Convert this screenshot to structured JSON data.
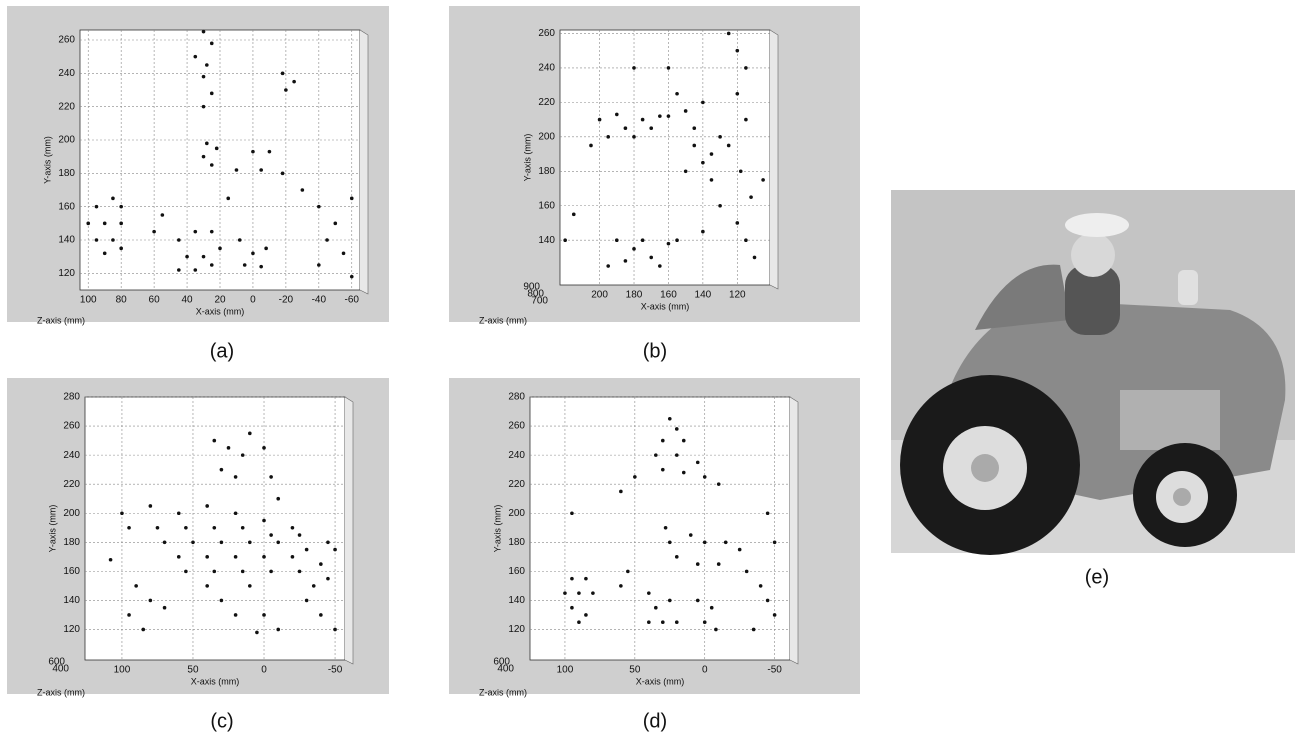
{
  "chart_data": [
    {
      "type": "scatter",
      "caption": "(a)",
      "x_label": "X-axis (mm)",
      "y_label": "Y-axis (mm)",
      "z_label": "Z-axis (mm)",
      "xlim": [
        105,
        -65
      ],
      "ylim": [
        110,
        266
      ],
      "xticks": [
        100,
        80,
        60,
        40,
        20,
        0,
        -20,
        -40,
        -60
      ],
      "yticks": [
        120,
        140,
        160,
        180,
        200,
        220,
        240,
        260
      ],
      "zticks": [],
      "grid": true,
      "color": "#111111",
      "x": [
        95,
        85,
        80,
        100,
        90,
        80,
        95,
        85,
        80,
        90,
        45,
        35,
        25,
        40,
        30,
        20,
        45,
        35,
        25,
        30,
        25,
        35,
        28,
        30,
        25,
        30,
        28,
        22,
        30,
        25,
        8,
        0,
        -8,
        5,
        -5,
        0,
        -10,
        10,
        -5,
        -18,
        -18,
        -25,
        -20,
        -40,
        -50,
        -60,
        -45,
        -55,
        -40,
        -60,
        55,
        60,
        15,
        -30
      ],
      "y": [
        160,
        165,
        160,
        150,
        150,
        150,
        140,
        140,
        135,
        132,
        140,
        145,
        145,
        130,
        130,
        135,
        122,
        122,
        125,
        265,
        258,
        250,
        245,
        238,
        228,
        220,
        198,
        195,
        190,
        185,
        140,
        132,
        135,
        125,
        124,
        193,
        193,
        182,
        182,
        180,
        240,
        235,
        230,
        160,
        150,
        165,
        140,
        132,
        125,
        118,
        155,
        145,
        165,
        170
      ]
    },
    {
      "type": "scatter",
      "caption": "(b)",
      "x_label": "X-axis (mm)",
      "y_label": "Y-axis (mm)",
      "z_label": "Z-axis (mm)",
      "xlim": [
        223,
        101
      ],
      "ylim": [
        114,
        262
      ],
      "xticks": [
        200,
        180,
        160,
        140,
        120
      ],
      "yticks": [
        140,
        160,
        180,
        200,
        220,
        240,
        260
      ],
      "zticks": [
        900,
        800,
        700
      ],
      "grid": true,
      "color": "#111111",
      "x": [
        205,
        195,
        185,
        175,
        165,
        200,
        190,
        180,
        170,
        160,
        190,
        180,
        170,
        160,
        195,
        185,
        175,
        165,
        155,
        155,
        150,
        145,
        140,
        145,
        135,
        150,
        140,
        130,
        135,
        125,
        120,
        115,
        120,
        115,
        125,
        118,
        112,
        120,
        115,
        110,
        105,
        215,
        220,
        180,
        160,
        130,
        140
      ],
      "y": [
        195,
        200,
        205,
        210,
        212,
        210,
        213,
        200,
        205,
        212,
        140,
        135,
        130,
        138,
        125,
        128,
        140,
        125,
        140,
        225,
        215,
        205,
        220,
        195,
        190,
        180,
        185,
        200,
        175,
        260,
        250,
        240,
        225,
        210,
        195,
        180,
        165,
        150,
        140,
        130,
        175,
        155,
        140,
        240,
        240,
        160,
        145
      ]
    },
    {
      "type": "scatter",
      "caption": "(c)",
      "x_label": "X-axis (mm)",
      "y_label": "Y-axis (mm)",
      "z_label": "Z-axis (mm)",
      "xlim": [
        126,
        -57
      ],
      "ylim": [
        99,
        280
      ],
      "xticks": [
        100,
        50,
        0,
        -50
      ],
      "yticks": [
        120,
        140,
        160,
        180,
        200,
        220,
        240,
        260,
        280
      ],
      "zticks": [
        600,
        400
      ],
      "grid": true,
      "color": "#111111",
      "x": [
        100,
        80,
        60,
        40,
        20,
        0,
        -20,
        95,
        75,
        55,
        35,
        15,
        -5,
        -25,
        -45,
        70,
        50,
        30,
        10,
        -10,
        -30,
        -50,
        60,
        40,
        20,
        0,
        -20,
        -40,
        55,
        35,
        15,
        -5,
        -25,
        -45,
        90,
        80,
        95,
        85,
        70,
        40,
        30,
        20,
        10,
        0,
        -10,
        5,
        -30,
        -40,
        -50,
        -35,
        35,
        25,
        15,
        30,
        20,
        10,
        0,
        -5,
        -10,
        108
      ],
      "y": [
        200,
        205,
        200,
        205,
        200,
        195,
        190,
        190,
        190,
        190,
        190,
        190,
        185,
        185,
        180,
        180,
        180,
        180,
        180,
        180,
        175,
        175,
        170,
        170,
        170,
        170,
        170,
        165,
        160,
        160,
        160,
        160,
        160,
        155,
        150,
        140,
        130,
        120,
        135,
        150,
        140,
        130,
        150,
        130,
        120,
        118,
        140,
        130,
        120,
        150,
        250,
        245,
        240,
        230,
        225,
        255,
        245,
        225,
        210,
        168
      ]
    },
    {
      "type": "scatter",
      "caption": "(d)",
      "x_label": "X-axis (mm)",
      "y_label": "Y-axis (mm)",
      "z_label": "Z-axis (mm)",
      "xlim": [
        125,
        -61
      ],
      "ylim": [
        99,
        280
      ],
      "xticks": [
        100,
        50,
        0,
        -50
      ],
      "yticks": [
        120,
        140,
        160,
        180,
        200,
        220,
        240,
        260,
        280
      ],
      "zticks": [
        600,
        400
      ],
      "grid": true,
      "color": "#111111",
      "x": [
        25,
        20,
        30,
        15,
        35,
        20,
        5,
        30,
        15,
        0,
        -10,
        50,
        60,
        95,
        85,
        100,
        90,
        80,
        95,
        85,
        90,
        40,
        30,
        20,
        35,
        25,
        40,
        28,
        25,
        20,
        10,
        0,
        -15,
        -25,
        5,
        -10,
        5,
        -5,
        0,
        -8,
        -30,
        -40,
        -45,
        -50,
        -35,
        -50,
        -45,
        95,
        55,
        60
      ],
      "y": [
        265,
        258,
        250,
        250,
        240,
        240,
        235,
        230,
        228,
        225,
        220,
        225,
        215,
        155,
        155,
        145,
        145,
        145,
        135,
        130,
        125,
        125,
        125,
        125,
        135,
        140,
        145,
        190,
        180,
        170,
        185,
        180,
        180,
        175,
        165,
        165,
        140,
        135,
        125,
        120,
        160,
        150,
        140,
        130,
        120,
        180,
        200,
        200,
        160,
        150
      ]
    }
  ],
  "photo": {
    "caption": "(e)"
  }
}
